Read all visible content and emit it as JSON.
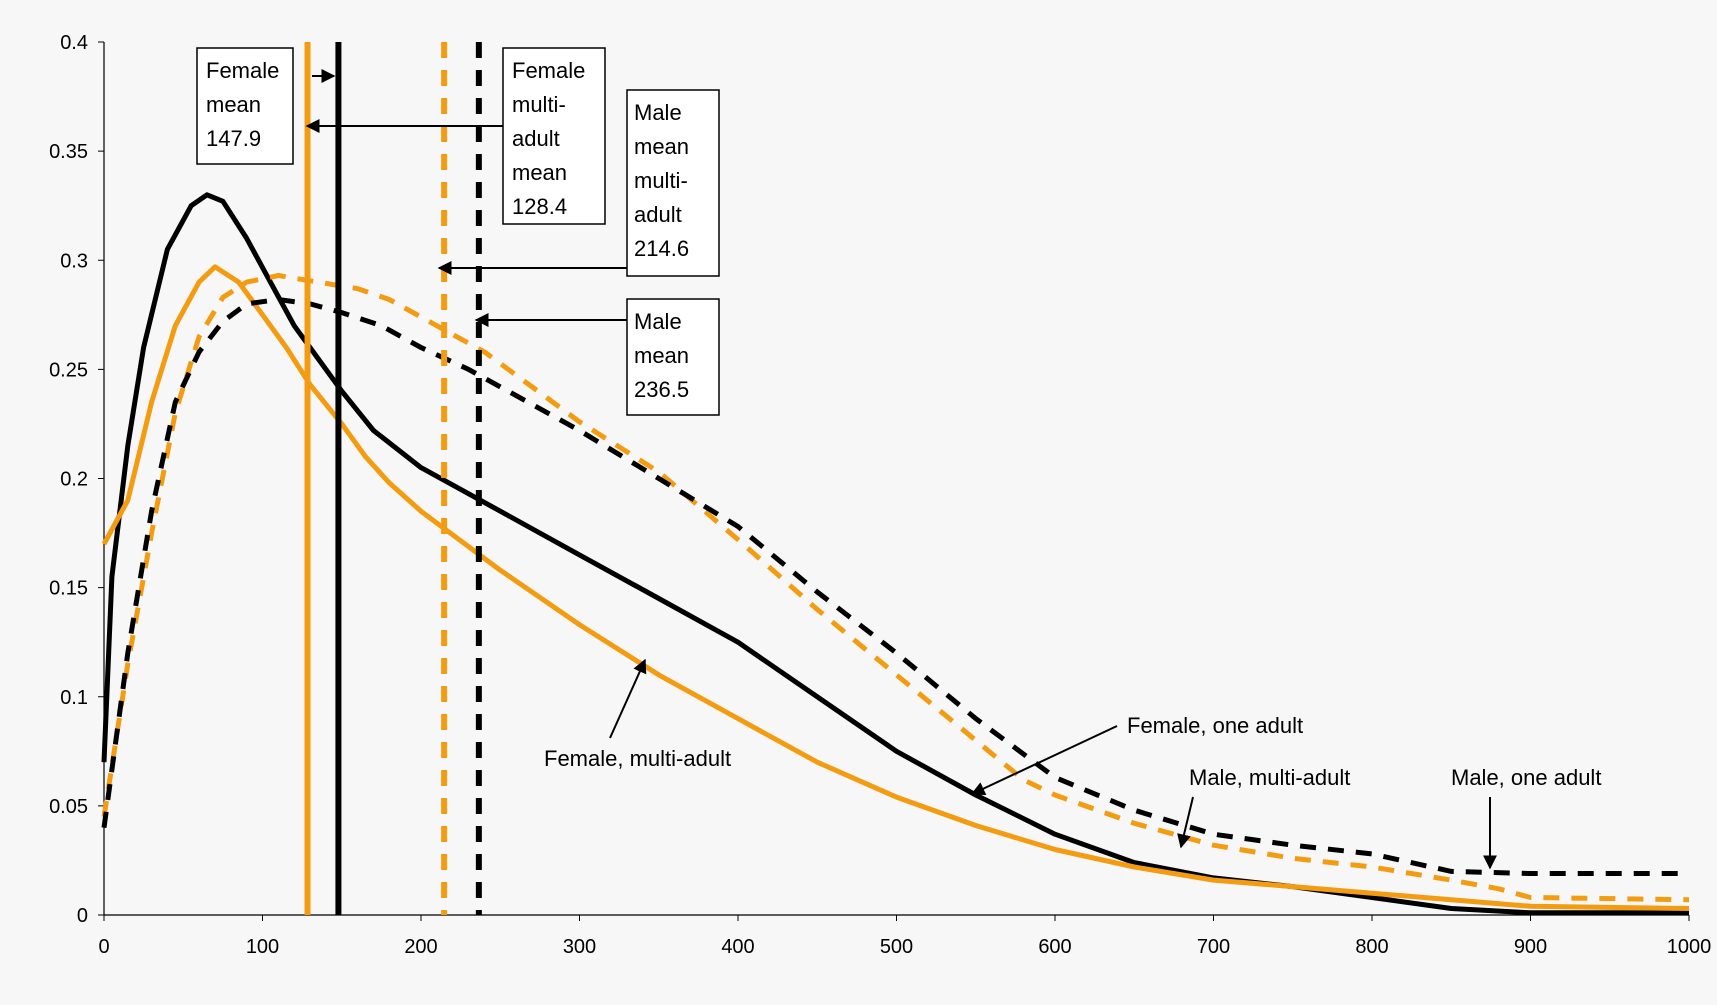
{
  "chart_data": {
    "type": "line",
    "title": "",
    "xlabel": "",
    "ylabel": "",
    "xlim": [
      0,
      1000
    ],
    "ylim": [
      0,
      0.4
    ],
    "x_ticks": [
      "0",
      "100",
      "200",
      "300",
      "400",
      "500",
      "600",
      "700",
      "800",
      "900",
      "1000"
    ],
    "y_ticks": [
      "0",
      "0.05",
      "0.1",
      "0.15",
      "0.2",
      "0.25",
      "0.3",
      "0.35",
      "0.4"
    ],
    "grid": false,
    "series": [
      {
        "name": "Female, one adult",
        "color": "#000000",
        "style": "solid",
        "points": [
          [
            0,
            0.07
          ],
          [
            5,
            0.155
          ],
          [
            15,
            0.215
          ],
          [
            25,
            0.26
          ],
          [
            40,
            0.305
          ],
          [
            55,
            0.325
          ],
          [
            65,
            0.33
          ],
          [
            75,
            0.327
          ],
          [
            90,
            0.31
          ],
          [
            105,
            0.29
          ],
          [
            120,
            0.27
          ],
          [
            135,
            0.255
          ],
          [
            150,
            0.24
          ],
          [
            170,
            0.222
          ],
          [
            200,
            0.205
          ],
          [
            250,
            0.185
          ],
          [
            300,
            0.165
          ],
          [
            350,
            0.145
          ],
          [
            400,
            0.125
          ],
          [
            450,
            0.1
          ],
          [
            500,
            0.075
          ],
          [
            550,
            0.055
          ],
          [
            600,
            0.037
          ],
          [
            650,
            0.024
          ],
          [
            700,
            0.017
          ],
          [
            750,
            0.013
          ],
          [
            800,
            0.008
          ],
          [
            850,
            0.003
          ],
          [
            900,
            0.001
          ],
          [
            1000,
            0.001
          ]
        ]
      },
      {
        "name": "Female, multi-adult",
        "color": "#f39c12",
        "style": "solid",
        "points": [
          [
            0,
            0.17
          ],
          [
            15,
            0.19
          ],
          [
            30,
            0.235
          ],
          [
            45,
            0.27
          ],
          [
            60,
            0.29
          ],
          [
            70,
            0.297
          ],
          [
            85,
            0.29
          ],
          [
            100,
            0.275
          ],
          [
            115,
            0.26
          ],
          [
            130,
            0.243
          ],
          [
            150,
            0.225
          ],
          [
            165,
            0.21
          ],
          [
            180,
            0.198
          ],
          [
            200,
            0.185
          ],
          [
            250,
            0.158
          ],
          [
            300,
            0.133
          ],
          [
            350,
            0.11
          ],
          [
            400,
            0.09
          ],
          [
            450,
            0.07
          ],
          [
            500,
            0.054
          ],
          [
            550,
            0.041
          ],
          [
            600,
            0.03
          ],
          [
            650,
            0.022
          ],
          [
            700,
            0.016
          ],
          [
            750,
            0.013
          ],
          [
            800,
            0.01
          ],
          [
            850,
            0.007
          ],
          [
            900,
            0.004
          ],
          [
            1000,
            0.003
          ]
        ]
      },
      {
        "name": "Male, multi-adult",
        "color": "#f39c12",
        "style": "dashed",
        "points": [
          [
            0,
            0.045
          ],
          [
            15,
            0.115
          ],
          [
            30,
            0.175
          ],
          [
            45,
            0.23
          ],
          [
            60,
            0.265
          ],
          [
            75,
            0.283
          ],
          [
            90,
            0.29
          ],
          [
            110,
            0.293
          ],
          [
            135,
            0.29
          ],
          [
            160,
            0.287
          ],
          [
            180,
            0.282
          ],
          [
            210,
            0.27
          ],
          [
            240,
            0.258
          ],
          [
            270,
            0.242
          ],
          [
            300,
            0.226
          ],
          [
            350,
            0.203
          ],
          [
            400,
            0.172
          ],
          [
            450,
            0.14
          ],
          [
            500,
            0.11
          ],
          [
            550,
            0.08
          ],
          [
            580,
            0.062
          ],
          [
            600,
            0.055
          ],
          [
            650,
            0.042
          ],
          [
            700,
            0.032
          ],
          [
            750,
            0.026
          ],
          [
            800,
            0.022
          ],
          [
            850,
            0.016
          ],
          [
            880,
            0.012
          ],
          [
            900,
            0.008
          ],
          [
            1000,
            0.007
          ]
        ]
      },
      {
        "name": "Male, one adult",
        "color": "#000000",
        "style": "dashed",
        "points": [
          [
            0,
            0.04
          ],
          [
            15,
            0.12
          ],
          [
            30,
            0.185
          ],
          [
            45,
            0.235
          ],
          [
            60,
            0.258
          ],
          [
            75,
            0.272
          ],
          [
            90,
            0.28
          ],
          [
            110,
            0.282
          ],
          [
            130,
            0.28
          ],
          [
            150,
            0.276
          ],
          [
            175,
            0.27
          ],
          [
            200,
            0.26
          ],
          [
            230,
            0.25
          ],
          [
            260,
            0.238
          ],
          [
            300,
            0.222
          ],
          [
            350,
            0.2
          ],
          [
            400,
            0.178
          ],
          [
            450,
            0.148
          ],
          [
            500,
            0.12
          ],
          [
            550,
            0.09
          ],
          [
            600,
            0.063
          ],
          [
            650,
            0.048
          ],
          [
            700,
            0.037
          ],
          [
            750,
            0.032
          ],
          [
            800,
            0.028
          ],
          [
            850,
            0.02
          ],
          [
            900,
            0.019
          ],
          [
            1000,
            0.019
          ]
        ]
      }
    ],
    "vertical_lines": [
      {
        "label": "Female mean",
        "x": 147.9,
        "color": "#000000",
        "style": "solid"
      },
      {
        "label": "Female multi-adult mean",
        "x": 128.4,
        "color": "#f39c12",
        "style": "solid"
      },
      {
        "label": "Male mean multi-adult",
        "x": 214.6,
        "color": "#f39c12",
        "style": "dashed"
      },
      {
        "label": "Male mean",
        "x": 236.5,
        "color": "#000000",
        "style": "dashed"
      }
    ],
    "annotations": [
      {
        "lines": [
          "Female",
          "mean",
          "147.9"
        ],
        "boxed": true
      },
      {
        "lines": [
          "Female",
          "multi-",
          "adult",
          "mean",
          "128.4"
        ],
        "boxed": true
      },
      {
        "lines": [
          "Male",
          "mean",
          "multi-",
          "adult",
          "214.6"
        ],
        "boxed": true
      },
      {
        "lines": [
          "Male",
          "mean",
          "236.5"
        ],
        "boxed": true
      },
      {
        "lines": [
          "Female, one adult"
        ],
        "boxed": false
      },
      {
        "lines": [
          "Female, multi-adult"
        ],
        "boxed": false
      },
      {
        "lines": [
          "Male, multi-adult"
        ],
        "boxed": false
      },
      {
        "lines": [
          "Male, one adult"
        ],
        "boxed": false
      }
    ]
  }
}
